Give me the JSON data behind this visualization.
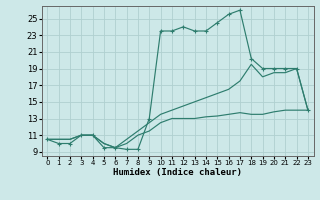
{
  "bg_color": "#cde8e8",
  "grid_color": "#b0d0d0",
  "line_color": "#2e7d6e",
  "xlabel": "Humidex (Indice chaleur)",
  "xlim": [
    -0.5,
    23.5
  ],
  "ylim": [
    8.5,
    26.5
  ],
  "yticks": [
    9,
    11,
    13,
    15,
    17,
    19,
    21,
    23,
    25
  ],
  "xticks": [
    0,
    1,
    2,
    3,
    4,
    5,
    6,
    7,
    8,
    9,
    10,
    11,
    12,
    13,
    14,
    15,
    16,
    17,
    18,
    19,
    20,
    21,
    22,
    23
  ],
  "line1_x": [
    0,
    1,
    2,
    3,
    4,
    5,
    6,
    7,
    8,
    9,
    10,
    11,
    12,
    13,
    14,
    15,
    16,
    17,
    18,
    19,
    20,
    21,
    22,
    23
  ],
  "line1_y": [
    10.5,
    10.0,
    10.0,
    11.0,
    11.0,
    9.5,
    9.5,
    9.3,
    9.3,
    13.0,
    23.5,
    23.5,
    24.0,
    23.5,
    23.5,
    24.5,
    25.5,
    26.0,
    20.2,
    19.0,
    19.0,
    19.0,
    19.0,
    14.0
  ],
  "line2_x": [
    0,
    1,
    2,
    3,
    4,
    5,
    6,
    7,
    8,
    9,
    10,
    11,
    12,
    13,
    14,
    15,
    16,
    17,
    18,
    19,
    20,
    21,
    22,
    23
  ],
  "line2_y": [
    10.5,
    10.5,
    10.5,
    11.0,
    11.0,
    10.0,
    9.5,
    10.5,
    11.5,
    12.5,
    13.5,
    14.0,
    14.5,
    15.0,
    15.5,
    16.0,
    16.5,
    17.5,
    19.5,
    18.0,
    18.5,
    18.5,
    19.0,
    14.0
  ],
  "line3_x": [
    0,
    1,
    2,
    3,
    4,
    5,
    6,
    7,
    8,
    9,
    10,
    11,
    12,
    13,
    14,
    15,
    16,
    17,
    18,
    19,
    20,
    21,
    22,
    23
  ],
  "line3_y": [
    10.5,
    10.5,
    10.5,
    11.0,
    11.0,
    10.0,
    9.5,
    10.0,
    11.0,
    11.5,
    12.5,
    13.0,
    13.0,
    13.0,
    13.2,
    13.3,
    13.5,
    13.7,
    13.5,
    13.5,
    13.8,
    14.0,
    14.0,
    14.0
  ]
}
